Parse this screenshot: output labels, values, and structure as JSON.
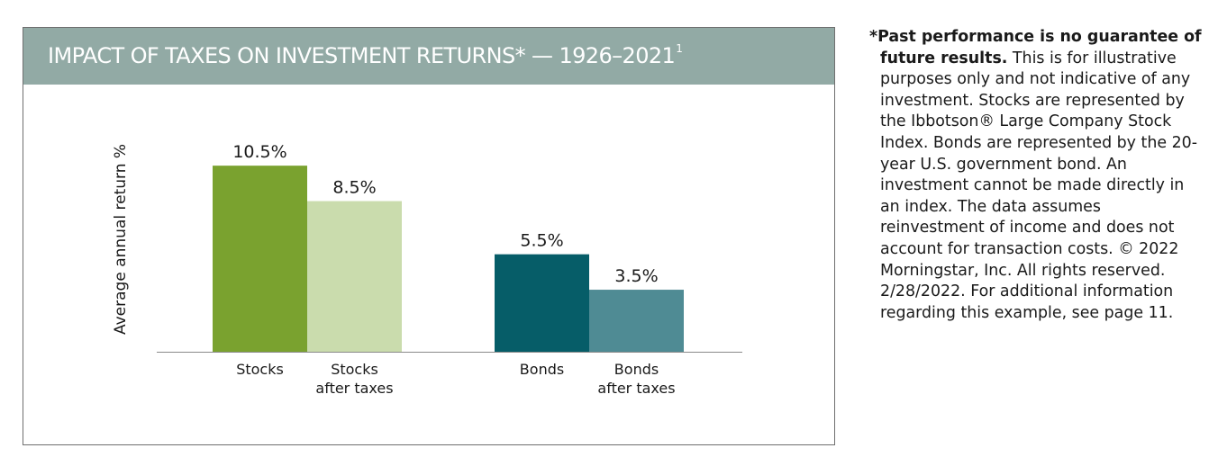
{
  "chart": {
    "title": "IMPACT OF TAXES ON INVESTMENT RETURNS* — 1926–2021",
    "title_footnote_mark": "1"
  },
  "chart_data": {
    "type": "bar",
    "title": "IMPACT OF TAXES ON INVESTMENT RETURNS* — 1926–2021",
    "ylabel": "Average annual return %",
    "xlabel": "",
    "ylim": [
      0,
      12
    ],
    "grid": false,
    "legend": "none",
    "bars": [
      {
        "group": "Stocks",
        "label_lines": [
          "Stocks"
        ],
        "value": 10.5,
        "data_label": "10.5%",
        "color": "#7aa22f"
      },
      {
        "group": "Stocks",
        "label_lines": [
          "Stocks",
          "after taxes"
        ],
        "value": 8.5,
        "data_label": "8.5%",
        "color": "#cadcad"
      },
      {
        "group": "Bonds",
        "label_lines": [
          "Bonds"
        ],
        "value": 5.5,
        "data_label": "5.5%",
        "color": "#065d68"
      },
      {
        "group": "Bonds",
        "label_lines": [
          "Bonds",
          "after taxes"
        ],
        "value": 3.5,
        "data_label": "3.5%",
        "color": "#4f8b94"
      }
    ]
  },
  "footnote": {
    "lead": "*Past performance is no guarantee of future results.",
    "body": " This is for illustrative purposes only and not indicative of any investment. Stocks are represented by the Ibbotson® Large Company Stock Index. Bonds are represented by the 20-year U.S. government bond. An investment cannot be made directly in an index. The data assumes reinvestment of income and does not account for transaction costs. © 2022 Morningstar, Inc. All rights reserved. 2/28/2022. For additional information regarding this example, see page 11."
  }
}
